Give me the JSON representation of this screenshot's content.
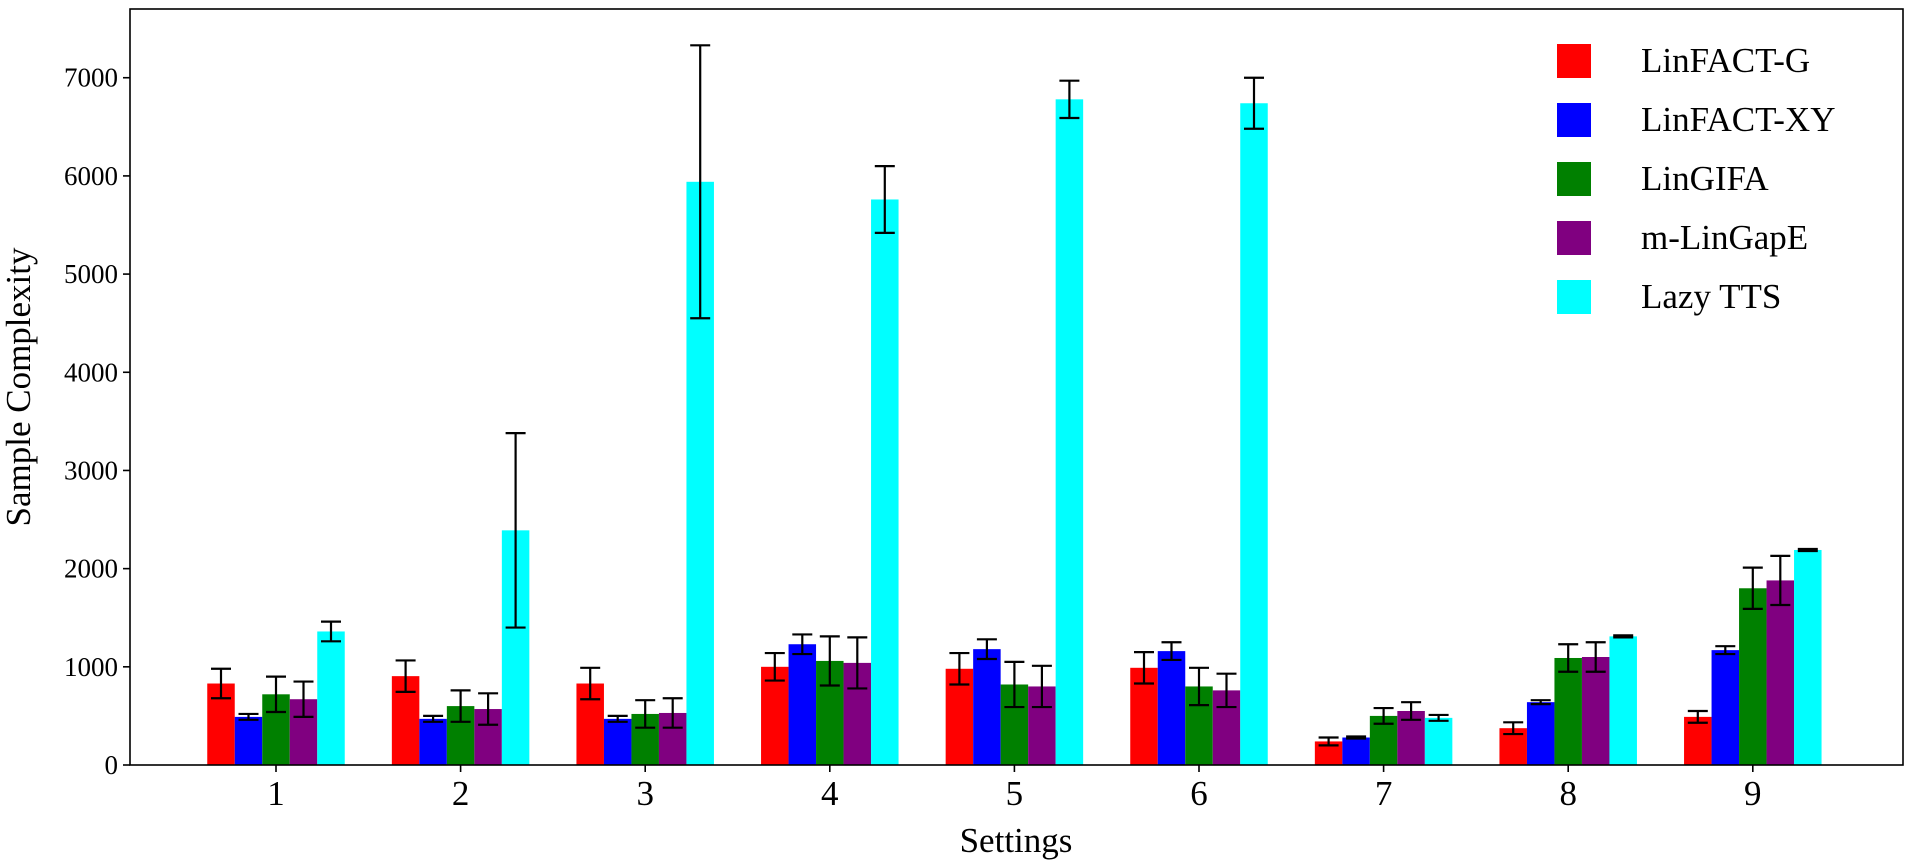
{
  "chart_data": {
    "type": "bar",
    "title": "",
    "xlabel": "Settings",
    "ylabel": "Sample Complexity",
    "categories": [
      "1",
      "2",
      "3",
      "4",
      "5",
      "6",
      "7",
      "8",
      "9"
    ],
    "ylim": [
      0,
      7700
    ],
    "yticks": [
      0,
      1000,
      2000,
      3000,
      4000,
      5000,
      6000,
      7000
    ],
    "ytick_labels": [
      "0",
      "1000",
      "2000",
      "3000",
      "4000",
      "5000",
      "6000",
      "7000"
    ],
    "grid": false,
    "legend_position": "top-right",
    "error_bars": true,
    "series": [
      {
        "name": "LinFACT-G",
        "color": "#ff0000",
        "values": [
          830,
          905,
          830,
          1000,
          980,
          990,
          240,
          375,
          490
        ],
        "errors": [
          150,
          160,
          160,
          140,
          160,
          160,
          40,
          60,
          60
        ]
      },
      {
        "name": "LinFACT-XY",
        "color": "#0000ff",
        "values": [
          490,
          470,
          470,
          1230,
          1180,
          1160,
          280,
          640,
          1170
        ],
        "errors": [
          30,
          30,
          30,
          100,
          100,
          90,
          10,
          20,
          40
        ]
      },
      {
        "name": "LinGIFA",
        "color": "#008000",
        "values": [
          720,
          600,
          520,
          1060,
          820,
          800,
          500,
          1090,
          1800
        ],
        "errors": [
          180,
          160,
          140,
          250,
          230,
          190,
          80,
          140,
          210
        ]
      },
      {
        "name": "m-LinGapE",
        "color": "#800080",
        "values": [
          670,
          570,
          530,
          1040,
          800,
          760,
          550,
          1100,
          1880
        ],
        "errors": [
          180,
          160,
          150,
          260,
          210,
          170,
          90,
          150,
          250
        ]
      },
      {
        "name": "Lazy TTS",
        "color": "#00ffff",
        "values": [
          1360,
          2390,
          5940,
          5760,
          6780,
          6740,
          480,
          1310,
          2190
        ],
        "errors": [
          100,
          990,
          1390,
          340,
          190,
          260,
          30,
          10,
          10
        ]
      }
    ]
  }
}
